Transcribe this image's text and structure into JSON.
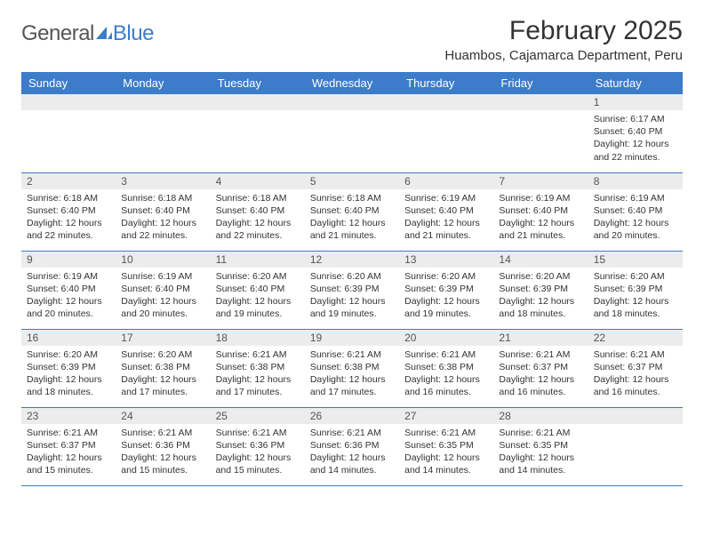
{
  "logo": {
    "text_general": "General",
    "text_blue": "Blue",
    "icon_color": "#3d7cc9"
  },
  "header": {
    "month_title": "February 2025",
    "location": "Huambos, Cajamarca Department, Peru"
  },
  "colors": {
    "header_bg": "#3d7cc9",
    "header_text": "#ffffff",
    "day_number_bg": "#ececec",
    "border_color": "#3d7cc9",
    "body_text": "#333333"
  },
  "typography": {
    "month_title_fontsize": 30,
    "location_fontsize": 15,
    "weekday_fontsize": 13,
    "day_number_fontsize": 12,
    "detail_fontsize": 10.5
  },
  "weekdays": [
    "Sunday",
    "Monday",
    "Tuesday",
    "Wednesday",
    "Thursday",
    "Friday",
    "Saturday"
  ],
  "weeks": [
    [
      {
        "day": null
      },
      {
        "day": null
      },
      {
        "day": null
      },
      {
        "day": null
      },
      {
        "day": null
      },
      {
        "day": null
      },
      {
        "day": "1",
        "sunrise": "Sunrise: 6:17 AM",
        "sunset": "Sunset: 6:40 PM",
        "daylight1": "Daylight: 12 hours",
        "daylight2": "and 22 minutes."
      }
    ],
    [
      {
        "day": "2",
        "sunrise": "Sunrise: 6:18 AM",
        "sunset": "Sunset: 6:40 PM",
        "daylight1": "Daylight: 12 hours",
        "daylight2": "and 22 minutes."
      },
      {
        "day": "3",
        "sunrise": "Sunrise: 6:18 AM",
        "sunset": "Sunset: 6:40 PM",
        "daylight1": "Daylight: 12 hours",
        "daylight2": "and 22 minutes."
      },
      {
        "day": "4",
        "sunrise": "Sunrise: 6:18 AM",
        "sunset": "Sunset: 6:40 PM",
        "daylight1": "Daylight: 12 hours",
        "daylight2": "and 22 minutes."
      },
      {
        "day": "5",
        "sunrise": "Sunrise: 6:18 AM",
        "sunset": "Sunset: 6:40 PM",
        "daylight1": "Daylight: 12 hours",
        "daylight2": "and 21 minutes."
      },
      {
        "day": "6",
        "sunrise": "Sunrise: 6:19 AM",
        "sunset": "Sunset: 6:40 PM",
        "daylight1": "Daylight: 12 hours",
        "daylight2": "and 21 minutes."
      },
      {
        "day": "7",
        "sunrise": "Sunrise: 6:19 AM",
        "sunset": "Sunset: 6:40 PM",
        "daylight1": "Daylight: 12 hours",
        "daylight2": "and 21 minutes."
      },
      {
        "day": "8",
        "sunrise": "Sunrise: 6:19 AM",
        "sunset": "Sunset: 6:40 PM",
        "daylight1": "Daylight: 12 hours",
        "daylight2": "and 20 minutes."
      }
    ],
    [
      {
        "day": "9",
        "sunrise": "Sunrise: 6:19 AM",
        "sunset": "Sunset: 6:40 PM",
        "daylight1": "Daylight: 12 hours",
        "daylight2": "and 20 minutes."
      },
      {
        "day": "10",
        "sunrise": "Sunrise: 6:19 AM",
        "sunset": "Sunset: 6:40 PM",
        "daylight1": "Daylight: 12 hours",
        "daylight2": "and 20 minutes."
      },
      {
        "day": "11",
        "sunrise": "Sunrise: 6:20 AM",
        "sunset": "Sunset: 6:40 PM",
        "daylight1": "Daylight: 12 hours",
        "daylight2": "and 19 minutes."
      },
      {
        "day": "12",
        "sunrise": "Sunrise: 6:20 AM",
        "sunset": "Sunset: 6:39 PM",
        "daylight1": "Daylight: 12 hours",
        "daylight2": "and 19 minutes."
      },
      {
        "day": "13",
        "sunrise": "Sunrise: 6:20 AM",
        "sunset": "Sunset: 6:39 PM",
        "daylight1": "Daylight: 12 hours",
        "daylight2": "and 19 minutes."
      },
      {
        "day": "14",
        "sunrise": "Sunrise: 6:20 AM",
        "sunset": "Sunset: 6:39 PM",
        "daylight1": "Daylight: 12 hours",
        "daylight2": "and 18 minutes."
      },
      {
        "day": "15",
        "sunrise": "Sunrise: 6:20 AM",
        "sunset": "Sunset: 6:39 PM",
        "daylight1": "Daylight: 12 hours",
        "daylight2": "and 18 minutes."
      }
    ],
    [
      {
        "day": "16",
        "sunrise": "Sunrise: 6:20 AM",
        "sunset": "Sunset: 6:39 PM",
        "daylight1": "Daylight: 12 hours",
        "daylight2": "and 18 minutes."
      },
      {
        "day": "17",
        "sunrise": "Sunrise: 6:20 AM",
        "sunset": "Sunset: 6:38 PM",
        "daylight1": "Daylight: 12 hours",
        "daylight2": "and 17 minutes."
      },
      {
        "day": "18",
        "sunrise": "Sunrise: 6:21 AM",
        "sunset": "Sunset: 6:38 PM",
        "daylight1": "Daylight: 12 hours",
        "daylight2": "and 17 minutes."
      },
      {
        "day": "19",
        "sunrise": "Sunrise: 6:21 AM",
        "sunset": "Sunset: 6:38 PM",
        "daylight1": "Daylight: 12 hours",
        "daylight2": "and 17 minutes."
      },
      {
        "day": "20",
        "sunrise": "Sunrise: 6:21 AM",
        "sunset": "Sunset: 6:38 PM",
        "daylight1": "Daylight: 12 hours",
        "daylight2": "and 16 minutes."
      },
      {
        "day": "21",
        "sunrise": "Sunrise: 6:21 AM",
        "sunset": "Sunset: 6:37 PM",
        "daylight1": "Daylight: 12 hours",
        "daylight2": "and 16 minutes."
      },
      {
        "day": "22",
        "sunrise": "Sunrise: 6:21 AM",
        "sunset": "Sunset: 6:37 PM",
        "daylight1": "Daylight: 12 hours",
        "daylight2": "and 16 minutes."
      }
    ],
    [
      {
        "day": "23",
        "sunrise": "Sunrise: 6:21 AM",
        "sunset": "Sunset: 6:37 PM",
        "daylight1": "Daylight: 12 hours",
        "daylight2": "and 15 minutes."
      },
      {
        "day": "24",
        "sunrise": "Sunrise: 6:21 AM",
        "sunset": "Sunset: 6:36 PM",
        "daylight1": "Daylight: 12 hours",
        "daylight2": "and 15 minutes."
      },
      {
        "day": "25",
        "sunrise": "Sunrise: 6:21 AM",
        "sunset": "Sunset: 6:36 PM",
        "daylight1": "Daylight: 12 hours",
        "daylight2": "and 15 minutes."
      },
      {
        "day": "26",
        "sunrise": "Sunrise: 6:21 AM",
        "sunset": "Sunset: 6:36 PM",
        "daylight1": "Daylight: 12 hours",
        "daylight2": "and 14 minutes."
      },
      {
        "day": "27",
        "sunrise": "Sunrise: 6:21 AM",
        "sunset": "Sunset: 6:35 PM",
        "daylight1": "Daylight: 12 hours",
        "daylight2": "and 14 minutes."
      },
      {
        "day": "28",
        "sunrise": "Sunrise: 6:21 AM",
        "sunset": "Sunset: 6:35 PM",
        "daylight1": "Daylight: 12 hours",
        "daylight2": "and 14 minutes."
      },
      {
        "day": null
      }
    ]
  ]
}
